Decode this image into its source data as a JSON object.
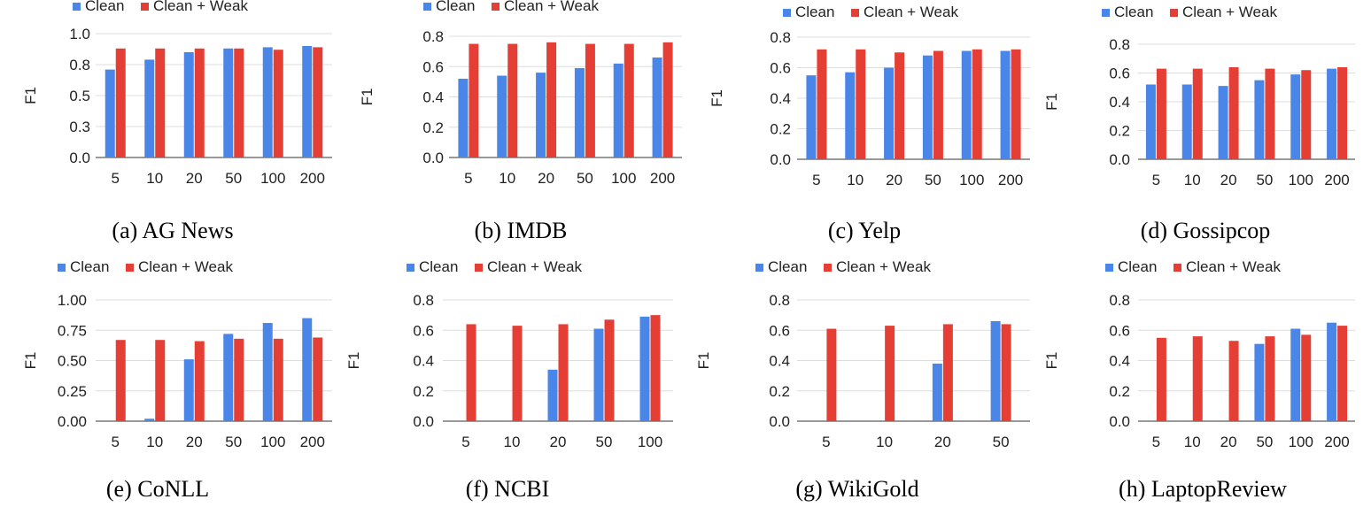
{
  "colors": {
    "clean": "#4a86e8",
    "weak": "#e53e35",
    "grid": "#dcdcdc"
  },
  "legend": {
    "clean": "Clean",
    "weak": "Clean + Weak"
  },
  "chart_data": [
    {
      "type": "bar",
      "caption": "(a) AG News",
      "ylabel": "F1",
      "ylim": [
        0,
        1.0
      ],
      "yticks": [
        "0.0",
        "0.3",
        "0.5",
        "0.8",
        "1.0"
      ],
      "categories": [
        "5",
        "10",
        "20",
        "50",
        "100",
        "200"
      ],
      "series": [
        {
          "name": "Clean",
          "values": [
            0.71,
            0.79,
            0.85,
            0.88,
            0.89,
            0.9
          ]
        },
        {
          "name": "Clean + Weak",
          "values": [
            0.88,
            0.88,
            0.88,
            0.88,
            0.87,
            0.89
          ]
        }
      ]
    },
    {
      "type": "bar",
      "caption": "(b) IMDB",
      "ylabel": "F1",
      "ylim": [
        0,
        0.8
      ],
      "yticks": [
        "0.0",
        "0.2",
        "0.4",
        "0.6",
        "0.8"
      ],
      "categories": [
        "5",
        "10",
        "20",
        "50",
        "100",
        "200"
      ],
      "series": [
        {
          "name": "Clean",
          "values": [
            0.52,
            0.54,
            0.56,
            0.59,
            0.62,
            0.66
          ]
        },
        {
          "name": "Clean + Weak",
          "values": [
            0.75,
            0.75,
            0.76,
            0.75,
            0.75,
            0.76
          ]
        }
      ]
    },
    {
      "type": "bar",
      "caption": "(c) Yelp",
      "ylabel": "F1",
      "ylim": [
        0,
        0.8
      ],
      "yticks": [
        "0.0",
        "0.2",
        "0.4",
        "0.6",
        "0.8"
      ],
      "categories": [
        "5",
        "10",
        "20",
        "50",
        "100",
        "200"
      ],
      "series": [
        {
          "name": "Clean",
          "values": [
            0.55,
            0.57,
            0.6,
            0.68,
            0.71,
            0.71
          ]
        },
        {
          "name": "Clean + Weak",
          "values": [
            0.72,
            0.72,
            0.7,
            0.71,
            0.72,
            0.72
          ]
        }
      ]
    },
    {
      "type": "bar",
      "caption": "(d) Gossipcop",
      "ylabel": "F1",
      "ylim": [
        0,
        0.8
      ],
      "yticks": [
        "0.0",
        "0.2",
        "0.4",
        "0.6",
        "0.8"
      ],
      "categories": [
        "5",
        "10",
        "20",
        "50",
        "100",
        "200"
      ],
      "series": [
        {
          "name": "Clean",
          "values": [
            0.52,
            0.52,
            0.51,
            0.55,
            0.59,
            0.63
          ]
        },
        {
          "name": "Clean + Weak",
          "values": [
            0.63,
            0.63,
            0.64,
            0.63,
            0.62,
            0.64
          ]
        }
      ]
    },
    {
      "type": "bar",
      "caption": "(e) CoNLL",
      "ylabel": "F1",
      "ylim": [
        0,
        1.0
      ],
      "yticks": [
        "0.00",
        "0.25",
        "0.50",
        "0.75",
        "1.00"
      ],
      "categories": [
        "5",
        "10",
        "20",
        "50",
        "100",
        "200"
      ],
      "series": [
        {
          "name": "Clean",
          "values": [
            0.0,
            0.02,
            0.51,
            0.72,
            0.81,
            0.85
          ]
        },
        {
          "name": "Clean + Weak",
          "values": [
            0.67,
            0.67,
            0.66,
            0.68,
            0.68,
            0.69
          ]
        }
      ]
    },
    {
      "type": "bar",
      "caption": "(f) NCBI",
      "ylabel": "F1",
      "ylim": [
        0,
        0.8
      ],
      "yticks": [
        "0.0",
        "0.2",
        "0.4",
        "0.6",
        "0.8"
      ],
      "categories": [
        "5",
        "10",
        "20",
        "50",
        "100"
      ],
      "series": [
        {
          "name": "Clean",
          "values": [
            0.0,
            0.0,
            0.34,
            0.61,
            0.69
          ]
        },
        {
          "name": "Clean + Weak",
          "values": [
            0.64,
            0.63,
            0.64,
            0.67,
            0.7
          ]
        }
      ]
    },
    {
      "type": "bar",
      "caption": "(g) WikiGold",
      "ylabel": "F1",
      "ylim": [
        0,
        0.8
      ],
      "yticks": [
        "0.0",
        "0.2",
        "0.4",
        "0.6",
        "0.8"
      ],
      "categories": [
        "5",
        "10",
        "20",
        "50"
      ],
      "series": [
        {
          "name": "Clean",
          "values": [
            0.0,
            0.0,
            0.38,
            0.66
          ]
        },
        {
          "name": "Clean + Weak",
          "values": [
            0.61,
            0.63,
            0.64,
            0.64
          ]
        }
      ]
    },
    {
      "type": "bar",
      "caption": "(h) LaptopReview",
      "ylabel": "F1",
      "ylim": [
        0,
        0.8
      ],
      "yticks": [
        "0.0",
        "0.2",
        "0.4",
        "0.6",
        "0.8"
      ],
      "categories": [
        "5",
        "10",
        "20",
        "50",
        "100",
        "200"
      ],
      "series": [
        {
          "name": "Clean",
          "values": [
            0.0,
            0.0,
            0.0,
            0.51,
            0.61,
            0.65
          ]
        },
        {
          "name": "Clean + Weak",
          "values": [
            0.55,
            0.56,
            0.53,
            0.56,
            0.57,
            0.63
          ]
        }
      ]
    }
  ]
}
